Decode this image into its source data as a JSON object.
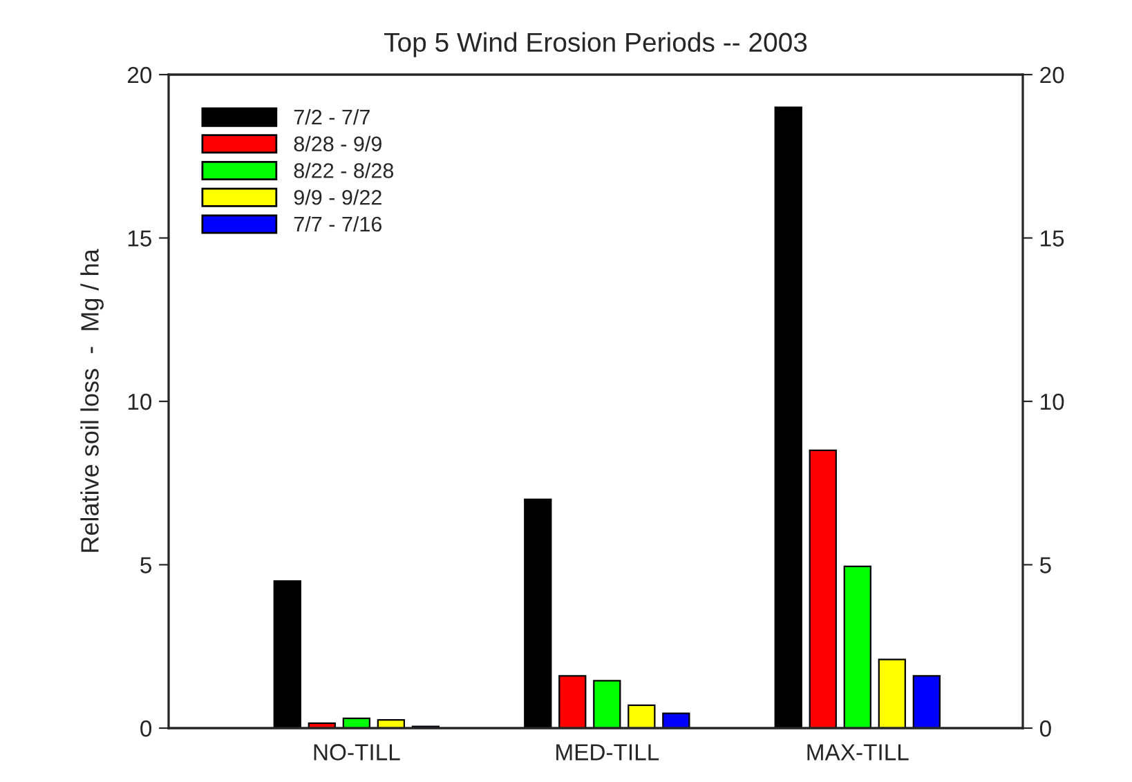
{
  "chart_data": {
    "type": "bar",
    "title": "Top 5 Wind Erosion Periods -- 2003",
    "ylabel": "Relative soil loss  -  Mg / ha",
    "categories": [
      "NO-TILL",
      "MED-TILL",
      "MAX-TILL"
    ],
    "series": [
      {
        "name": "7/2 - 7/7",
        "color": "#000000",
        "values": [
          4.5,
          7.0,
          19.0
        ]
      },
      {
        "name": "8/28 - 9/9",
        "color": "#ff0000",
        "values": [
          0.15,
          1.6,
          8.5
        ]
      },
      {
        "name": "8/22 - 8/28",
        "color": "#00ff00",
        "values": [
          0.3,
          1.45,
          4.95
        ]
      },
      {
        "name": "9/9 - 9/22",
        "color": "#ffff00",
        "values": [
          0.25,
          0.7,
          2.1
        ]
      },
      {
        "name": "7/7 - 7/16",
        "color": "#0000ff",
        "values": [
          0.05,
          0.45,
          1.6
        ]
      }
    ],
    "ylim": [
      0,
      20
    ],
    "yticks": [
      0,
      5,
      10,
      15,
      20
    ],
    "y2lim": [
      0,
      20
    ],
    "y2ticks": [
      0,
      5,
      10,
      15,
      20
    ],
    "grid": false,
    "legend": "top left"
  }
}
